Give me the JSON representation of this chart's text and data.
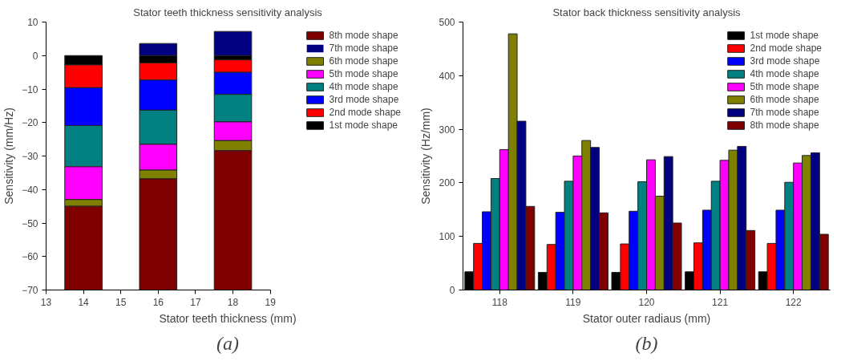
{
  "chart_data": [
    {
      "type": "bar",
      "stacked": true,
      "title": "Stator teeth thickness sensitivity analysis",
      "xlabel": "Stator teeth thickness (mm)",
      "ylabel": "Sensitivity (mm/Hz)",
      "x": [
        14,
        16,
        18
      ],
      "xlim": [
        13,
        19
      ],
      "xticks": [
        13,
        14,
        15,
        16,
        17,
        18,
        19
      ],
      "ylim": [
        -70,
        10
      ],
      "yticks": [
        -70,
        -60,
        -50,
        -40,
        -30,
        -20,
        -10,
        0,
        10
      ],
      "grid": false,
      "legend": "right",
      "annotations": [
        "(a)"
      ],
      "series": [
        {
          "name": "1st mode shape",
          "color": "#000000",
          "values": [
            -2.8,
            -2.2,
            -1.3
          ]
        },
        {
          "name": "2nd mode shape",
          "color": "#ff0000",
          "values": [
            -6.8,
            -5.1,
            -3.7
          ]
        },
        {
          "name": "3rd mode shape",
          "color": "#0000ff",
          "values": [
            -11.3,
            -9.0,
            -6.6
          ]
        },
        {
          "name": "4th mode shape",
          "color": "#008080",
          "values": [
            -12.3,
            -10.2,
            -8.2
          ]
        },
        {
          "name": "5th mode shape",
          "color": "#ff00ff",
          "values": [
            -9.8,
            -7.7,
            -5.6
          ]
        },
        {
          "name": "6th mode shape",
          "color": "#808000",
          "values": [
            -2.0,
            -2.6,
            -3.0
          ]
        },
        {
          "name": "7th mode shape",
          "color": "#000080",
          "values": [
            0,
            3.6,
            7.2
          ]
        },
        {
          "name": "8th mode shape",
          "color": "#800000",
          "values": [
            -25.0,
            -33.2,
            -41.6
          ]
        }
      ]
    },
    {
      "type": "bar",
      "title": "Stator back thickness sensitivity analysis",
      "xlabel": "Stator outer radiaus (mm)",
      "ylabel": "Sensitivity (Hz/mm)",
      "categories": [
        "118",
        "119",
        "120",
        "121",
        "122"
      ],
      "ylim": [
        0,
        500
      ],
      "yticks": [
        0,
        100,
        200,
        300,
        400,
        500
      ],
      "grid": false,
      "legend": "top right",
      "annotations": [
        "(b)"
      ],
      "series": [
        {
          "name": "1st mode shape",
          "color": "#000000",
          "values": [
            34,
            33,
            33,
            34,
            34
          ]
        },
        {
          "name": "2nd mode shape",
          "color": "#ff0000",
          "values": [
            87,
            85,
            86,
            88,
            87
          ]
        },
        {
          "name": "3rd mode shape",
          "color": "#0000ff",
          "values": [
            146,
            145,
            147,
            149,
            149
          ]
        },
        {
          "name": "4th mode shape",
          "color": "#008080",
          "values": [
            208,
            203,
            202,
            203,
            201
          ]
        },
        {
          "name": "5th mode shape",
          "color": "#ff00ff",
          "values": [
            262,
            250,
            243,
            242,
            237
          ]
        },
        {
          "name": "6th mode shape",
          "color": "#808000",
          "values": [
            478,
            279,
            175,
            261,
            251
          ]
        },
        {
          "name": "7th mode shape",
          "color": "#000080",
          "values": [
            315,
            266,
            249,
            268,
            256
          ]
        },
        {
          "name": "8th mode shape",
          "color": "#800000",
          "values": [
            156,
            144,
            125,
            111,
            104
          ]
        }
      ]
    }
  ]
}
